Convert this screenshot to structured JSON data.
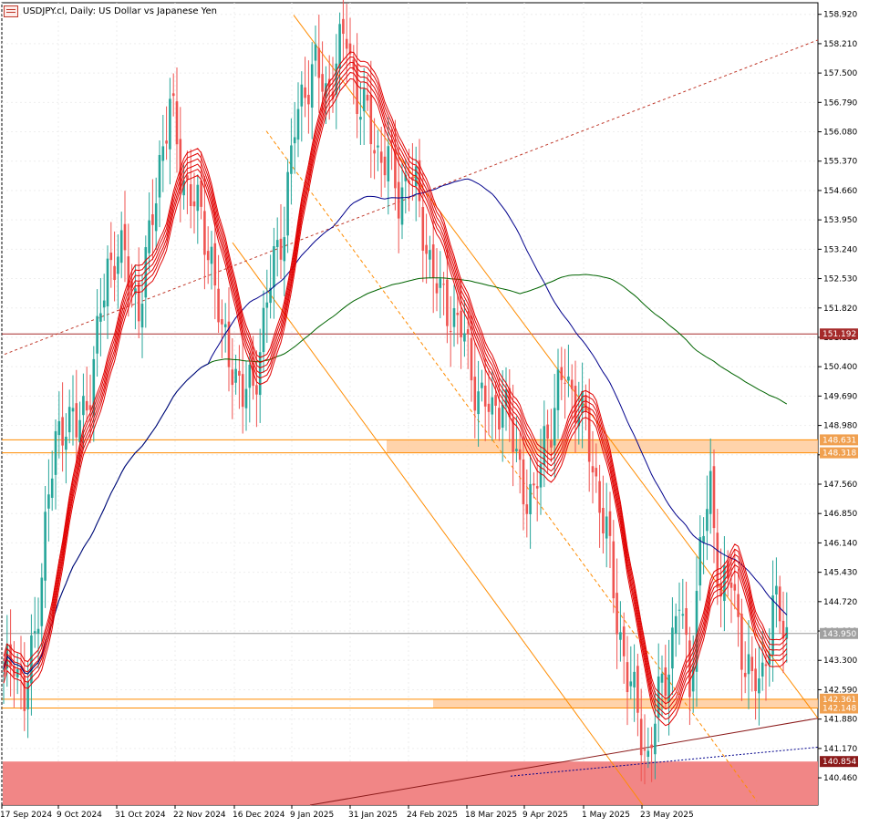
{
  "title": "USDJPY.cl, Daily:  US Dollar vs Japanese Yen",
  "icons": {
    "chart-type": "candles-icon"
  },
  "colors": {
    "bull": "#26a69a",
    "bear": "#ef5350",
    "grid": "#eeeeee",
    "ma_fast": "#e00000",
    "ma_mid": "#00008b",
    "ma_slow": "#006400",
    "channel": "#ff8c00",
    "zone": "#ffc896",
    "support_zone": "#f08080",
    "resistance_line": "#a52a2a"
  },
  "chart_data": {
    "type": "candlestick",
    "symbol": "USDJPY.cl",
    "timeframe": "Daily",
    "ylim": [
      139.8,
      159.2
    ],
    "y_ticks": [
      "158.920",
      "158.210",
      "157.500",
      "156.790",
      "156.080",
      "155.370",
      "154.660",
      "153.950",
      "153.240",
      "152.530",
      "151.820",
      "151.110",
      "150.400",
      "149.690",
      "148.980",
      "148.270",
      "147.560",
      "146.850",
      "146.140",
      "145.430",
      "144.720",
      "144.010",
      "143.300",
      "142.590",
      "141.880",
      "141.170",
      "140.460"
    ],
    "x_labels": [
      "17 Sep 2024",
      "9 Oct 2024",
      "31 Oct 2024",
      "22 Nov 2024",
      "16 Dec 2024",
      "9 Jan 2025",
      "31 Jan 2025",
      "24 Feb 2025",
      "18 Mar 2025",
      "9 Apr 2025",
      "1 May 2025",
      "23 May 2025"
    ],
    "price_tags": [
      {
        "label": "151.192",
        "value": 151.192,
        "kind": "line"
      },
      {
        "label": "148.631",
        "value": 148.631,
        "kind": "zone"
      },
      {
        "label": "148.318",
        "value": 148.318,
        "kind": "zone"
      },
      {
        "label": "143.950",
        "value": 143.95,
        "kind": "last"
      },
      {
        "label": "142.361",
        "value": 142.361,
        "kind": "zone"
      },
      {
        "label": "142.148",
        "value": 142.148,
        "kind": "zone"
      },
      {
        "label": "140.854",
        "value": 140.854,
        "kind": "support"
      }
    ],
    "close_path": [
      [
        0,
        142.8
      ],
      [
        3,
        143.6
      ],
      [
        6,
        142.2
      ],
      [
        9,
        143.9
      ],
      [
        12,
        146.5
      ],
      [
        15,
        148.5
      ],
      [
        18,
        149.3
      ],
      [
        21,
        148.8
      ],
      [
        24,
        149.6
      ],
      [
        27,
        151.0
      ],
      [
        30,
        152.8
      ],
      [
        33,
        153.3
      ],
      [
        36,
        152.6
      ],
      [
        39,
        151.9
      ],
      [
        42,
        153.3
      ],
      [
        45,
        155.4
      ],
      [
        48,
        156.7
      ],
      [
        51,
        155.2
      ],
      [
        54,
        154.6
      ],
      [
        57,
        153.9
      ],
      [
        60,
        153.1
      ],
      [
        63,
        151.0
      ],
      [
        66,
        150.6
      ],
      [
        69,
        149.6
      ],
      [
        72,
        150.0
      ],
      [
        75,
        151.4
      ],
      [
        78,
        152.9
      ],
      [
        81,
        154.0
      ],
      [
        84,
        156.1
      ],
      [
        87,
        157.3
      ],
      [
        90,
        157.6
      ],
      [
        93,
        157.0
      ],
      [
        96,
        157.8
      ],
      [
        99,
        158.4
      ],
      [
        102,
        157.0
      ],
      [
        105,
        156.3
      ],
      [
        108,
        155.6
      ],
      [
        111,
        155.4
      ],
      [
        114,
        154.5
      ],
      [
        117,
        155.2
      ],
      [
        120,
        154.2
      ],
      [
        123,
        153.0
      ],
      [
        126,
        152.0
      ],
      [
        129,
        151.8
      ],
      [
        132,
        151.3
      ],
      [
        135,
        150.3
      ],
      [
        138,
        149.6
      ],
      [
        141,
        149.2
      ],
      [
        144,
        149.8
      ],
      [
        147,
        148.5
      ],
      [
        150,
        147.6
      ],
      [
        153,
        147.0
      ],
      [
        156,
        148.7
      ],
      [
        159,
        149.3
      ],
      [
        162,
        150.3
      ],
      [
        165,
        149.6
      ],
      [
        168,
        148.9
      ],
      [
        171,
        147.6
      ],
      [
        174,
        146.3
      ],
      [
        177,
        144.4
      ],
      [
        180,
        142.9
      ],
      [
        183,
        142.0
      ],
      [
        186,
        140.9
      ],
      [
        189,
        142.3
      ],
      [
        192,
        143.4
      ],
      [
        195,
        144.7
      ],
      [
        198,
        142.8
      ],
      [
        201,
        145.9
      ],
      [
        204,
        147.4
      ],
      [
        207,
        145.0
      ],
      [
        210,
        145.2
      ],
      [
        213,
        143.7
      ],
      [
        216,
        142.6
      ],
      [
        219,
        143.0
      ],
      [
        222,
        144.6
      ],
      [
        225,
        144.1
      ],
      [
        226,
        143.95
      ]
    ]
  }
}
